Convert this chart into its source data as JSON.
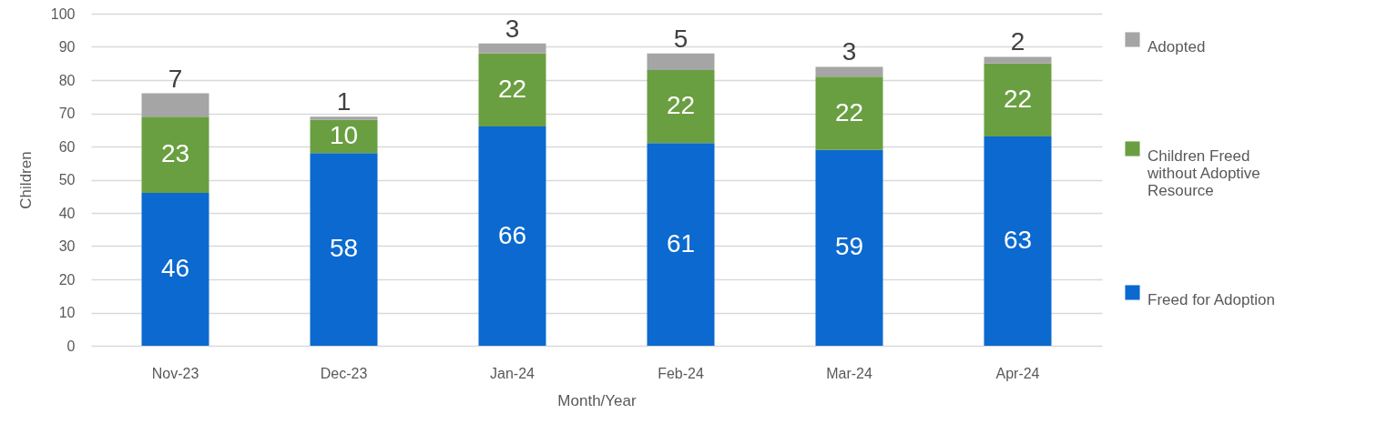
{
  "chart_data": {
    "type": "bar",
    "stacked": true,
    "categories": [
      "Nov-23",
      "Dec-23",
      "Jan-24",
      "Feb-24",
      "Mar-24",
      "Apr-24"
    ],
    "xlabel": "Month/Year",
    "ylabel": "Children",
    "ylim": [
      0,
      100
    ],
    "yticks": [
      0,
      10,
      20,
      30,
      40,
      50,
      60,
      70,
      80,
      90,
      100
    ],
    "grid": "y",
    "legend": "right",
    "data_labels": true,
    "series": [
      {
        "name": "Freed for Adoption",
        "color": "#0b69cf",
        "values": [
          46,
          58,
          66,
          61,
          59,
          63
        ]
      },
      {
        "name": "Children Freed without Adoptive Resource",
        "color": "#6a9f41",
        "values": [
          23,
          10,
          22,
          22,
          22,
          22
        ]
      },
      {
        "name": "Adopted",
        "color": "#a5a5a5",
        "values": [
          7,
          1,
          3,
          5,
          3,
          2
        ]
      }
    ]
  }
}
